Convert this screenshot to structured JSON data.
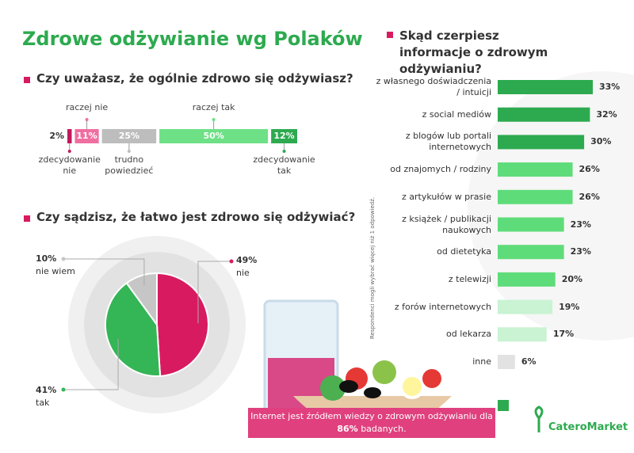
{
  "title": "Zdrowe odżywianie wg Polaków",
  "chart_data": [
    {
      "type": "stacked-bar",
      "title": "Czy uważasz, że ogólnie zdrowo się odżywiasz?",
      "series": [
        {
          "name": "zdecydowanie nie",
          "color": "#c2185b",
          "values": [
            2
          ],
          "value_labels": [
            "2%"
          ]
        },
        {
          "name": "raczej nie",
          "color": "#ee6fa0",
          "values": [
            11
          ],
          "value_labels": [
            "11%"
          ]
        },
        {
          "name": "trudno powiedzieć",
          "color": "#bdbdbd",
          "values": [
            25
          ],
          "value_labels": [
            "25%"
          ]
        },
        {
          "name": "raczej tak",
          "color": "#6ee086",
          "values": [
            50
          ],
          "value_labels": [
            "50%"
          ]
        },
        {
          "name": "zdecydowanie tak",
          "color": "#2daa4f",
          "values": [
            12
          ],
          "value_labels": [
            "12%"
          ]
        }
      ]
    },
    {
      "type": "pie",
      "title": "Czy sądzisz, że łatwo jest zdrowo się odżywiać?",
      "categories": [
        "nie",
        "tak",
        "nie wiem"
      ],
      "values": [
        49,
        41,
        10
      ],
      "value_labels": [
        "49%",
        "41%",
        "10%"
      ],
      "colors": [
        "#d81b60",
        "#34b556",
        "#c6c6c6"
      ]
    },
    {
      "type": "bar",
      "title": "Skąd czerpiesz informacje o zdrowym odżywianiu?",
      "categories": [
        "z własnego doświadczenia / intuicji",
        "z social mediów",
        "z blogów lub portali internetowych",
        "od znajomych / rodziny",
        "z artykułów w prasie",
        "z książek / publikacji naukowych",
        "od dietetyka",
        "z telewizji",
        "z forów internetowych",
        "od lekarza",
        "inne"
      ],
      "values": [
        33,
        32,
        30,
        26,
        26,
        23,
        23,
        20,
        19,
        17,
        6
      ],
      "value_labels": [
        "33%",
        "32%",
        "30%",
        "26%",
        "26%",
        "23%",
        "23%",
        "20%",
        "19%",
        "17%",
        "6%"
      ],
      "colors": [
        "#2daa4f",
        "#2daa4f",
        "#2daa4f",
        "#5fdc7a",
        "#5fdc7a",
        "#5fdc7a",
        "#5fdc7a",
        "#5fdc7a",
        "#c9f3d3",
        "#c9f3d3",
        "#e2e2e2"
      ],
      "note": "Respondenci mogli wybrać więcej niż 1 odpowiedź."
    }
  ],
  "callout": {
    "text": "Internet jest źródłem wiedzy o zdrowym odżywianiu dla",
    "highlight": "86%",
    "text_end": "badanych."
  },
  "brand": "CateroMarket"
}
